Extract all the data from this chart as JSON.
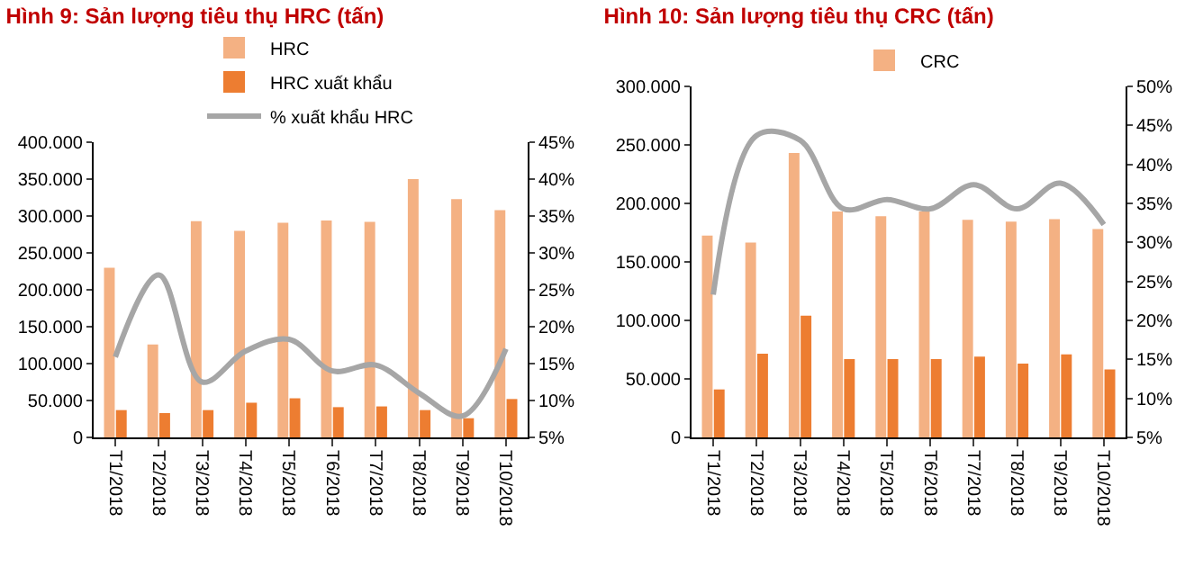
{
  "chart_data": [
    {
      "type": "bar",
      "title": "Hình 9: Sản lượng tiêu thụ HRC (tấn)",
      "categories": [
        "T1/2018",
        "T2/2018",
        "T3/2018",
        "T4/2018",
        "T5/2018",
        "T6/2018",
        "T7/2018",
        "T8/2018",
        "T9/2018",
        "T10/2018"
      ],
      "series": [
        {
          "name": "HRC",
          "color": "#f4b183",
          "values": [
            230000,
            126000,
            293000,
            280000,
            291000,
            294000,
            292000,
            350000,
            323000,
            308000
          ]
        },
        {
          "name": "HRC xuất khẩu",
          "color": "#ed7d31",
          "values": [
            37000,
            33000,
            37000,
            47000,
            53000,
            41000,
            42000,
            37000,
            26000,
            52000
          ]
        },
        {
          "name": "% xuất khẩu HRC",
          "type": "line",
          "axis": "y2",
          "color": "#a6a6a6",
          "values": [
            15.9,
            27,
            12.5,
            16.7,
            18.3,
            14,
            14.8,
            11,
            7.9,
            17
          ]
        }
      ],
      "ylim": [
        0,
        400000
      ],
      "yticks": [
        {
          "value": 0,
          "label": "0"
        },
        {
          "value": 50000,
          "label": "50.000"
        },
        {
          "value": 100000,
          "label": "100.000"
        },
        {
          "value": 150000,
          "label": "150.000"
        },
        {
          "value": 200000,
          "label": "200.000"
        },
        {
          "value": 250000,
          "label": "250.000"
        },
        {
          "value": 300000,
          "label": "300.000"
        },
        {
          "value": 350000,
          "label": "350.000"
        },
        {
          "value": 400000,
          "label": "400.000"
        }
      ],
      "y2lim": [
        5,
        45
      ],
      "y2ticks": [
        {
          "value": 5,
          "label": "5%"
        },
        {
          "value": 10,
          "label": "10%"
        },
        {
          "value": 15,
          "label": "15%"
        },
        {
          "value": 20,
          "label": "20%"
        },
        {
          "value": 25,
          "label": "25%"
        },
        {
          "value": 30,
          "label": "30%"
        },
        {
          "value": 35,
          "label": "35%"
        },
        {
          "value": 40,
          "label": "40%"
        },
        {
          "value": 45,
          "label": "45%"
        }
      ],
      "grid": false,
      "legend": "top",
      "marker": "none",
      "line_style": "solid"
    },
    {
      "type": "bar",
      "title": "Hình 10: Sản lượng tiêu thụ CRC (tấn)",
      "categories": [
        "T1/2018",
        "T2/2018",
        "T3/2018",
        "T4/2018",
        "T5/2018",
        "T6/2018",
        "T7/2018",
        "T8/2018",
        "T9/2018",
        "T10/2018"
      ],
      "series": [
        {
          "name": "CRC",
          "color": "#f4b183",
          "values": [
            172500,
            166600,
            243000,
            193000,
            189000,
            193000,
            186000,
            184500,
            186600,
            178000
          ]
        },
        {
          "color": "#ed7d31",
          "values": [
            41000,
            71600,
            104000,
            67000,
            67000,
            67000,
            69000,
            63000,
            71000,
            58000
          ]
        },
        {
          "type": "line",
          "axis": "y2",
          "color": "#a6a6a6",
          "values": [
            23.3,
            43.7,
            43.1,
            34.3,
            35.5,
            34.3,
            37.4,
            34.3,
            37.6,
            32.3
          ]
        }
      ],
      "ylim": [
        0,
        300000
      ],
      "yticks": [
        {
          "value": 0,
          "label": "0"
        },
        {
          "value": 50000,
          "label": "50.000"
        },
        {
          "value": 100000,
          "label": "100.000"
        },
        {
          "value": 150000,
          "label": "150.000"
        },
        {
          "value": 200000,
          "label": "200.000"
        },
        {
          "value": 250000,
          "label": "250.000"
        },
        {
          "value": 300000,
          "label": "300.000"
        }
      ],
      "y2lim": [
        5,
        50
      ],
      "y2ticks": [
        {
          "value": 5,
          "label": "5%"
        },
        {
          "value": 10,
          "label": "10%"
        },
        {
          "value": 15,
          "label": "15%"
        },
        {
          "value": 20,
          "label": "20%"
        },
        {
          "value": 25,
          "label": "25%"
        },
        {
          "value": 30,
          "label": "30%"
        },
        {
          "value": 35,
          "label": "35%"
        },
        {
          "value": 40,
          "label": "40%"
        },
        {
          "value": 45,
          "label": "45%"
        },
        {
          "value": 50,
          "label": "50%"
        }
      ],
      "grid": false,
      "legend": "top",
      "marker": "none",
      "line_style": "solid"
    }
  ]
}
